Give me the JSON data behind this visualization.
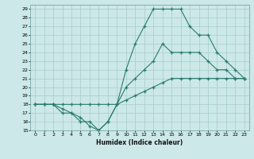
{
  "xlabel": "Humidex (Indice chaleur)",
  "background_color": "#cce8e8",
  "line_color": "#2a7b6f",
  "grid_color": "#a8cccc",
  "xlim": [
    -0.5,
    23.5
  ],
  "ylim": [
    15,
    29.5
  ],
  "xticks": [
    0,
    1,
    2,
    3,
    4,
    5,
    6,
    7,
    8,
    9,
    10,
    11,
    12,
    13,
    14,
    15,
    16,
    17,
    18,
    19,
    20,
    21,
    22,
    23
  ],
  "yticks": [
    15,
    16,
    17,
    18,
    19,
    20,
    21,
    22,
    23,
    24,
    25,
    26,
    27,
    28,
    29
  ],
  "line1_x": [
    0,
    1,
    2,
    3,
    4,
    5,
    6,
    7,
    8,
    9,
    10,
    11,
    12,
    13,
    14,
    15,
    16,
    17,
    18,
    19,
    20,
    21,
    22,
    23
  ],
  "line1_y": [
    18,
    18,
    18,
    17,
    17,
    16,
    16,
    15,
    16,
    18,
    20,
    21,
    22,
    23,
    25,
    24,
    24,
    24,
    24,
    23,
    22,
    22,
    21,
    21
  ],
  "line2_x": [
    0,
    1,
    2,
    3,
    4,
    5,
    6,
    7,
    8,
    9,
    10,
    11,
    12,
    13,
    14,
    15,
    16,
    17,
    18,
    19,
    20,
    21,
    22,
    23
  ],
  "line2_y": [
    18,
    18,
    18,
    18,
    18,
    18,
    18,
    18,
    18,
    18,
    18.5,
    19,
    19.5,
    20,
    20.5,
    21,
    21,
    21,
    21,
    21,
    21,
    21,
    21,
    21
  ],
  "line3_x": [
    0,
    1,
    2,
    3,
    4,
    5,
    6,
    7,
    8,
    9,
    10,
    11,
    12,
    13,
    14,
    15,
    16,
    17,
    18,
    19,
    20,
    21,
    22,
    23
  ],
  "line3_y": [
    18,
    18,
    18,
    17.5,
    17,
    16.5,
    15.5,
    15,
    16,
    18,
    22,
    25,
    27,
    29,
    29,
    29,
    29,
    27,
    26,
    26,
    24,
    23,
    22,
    21
  ]
}
